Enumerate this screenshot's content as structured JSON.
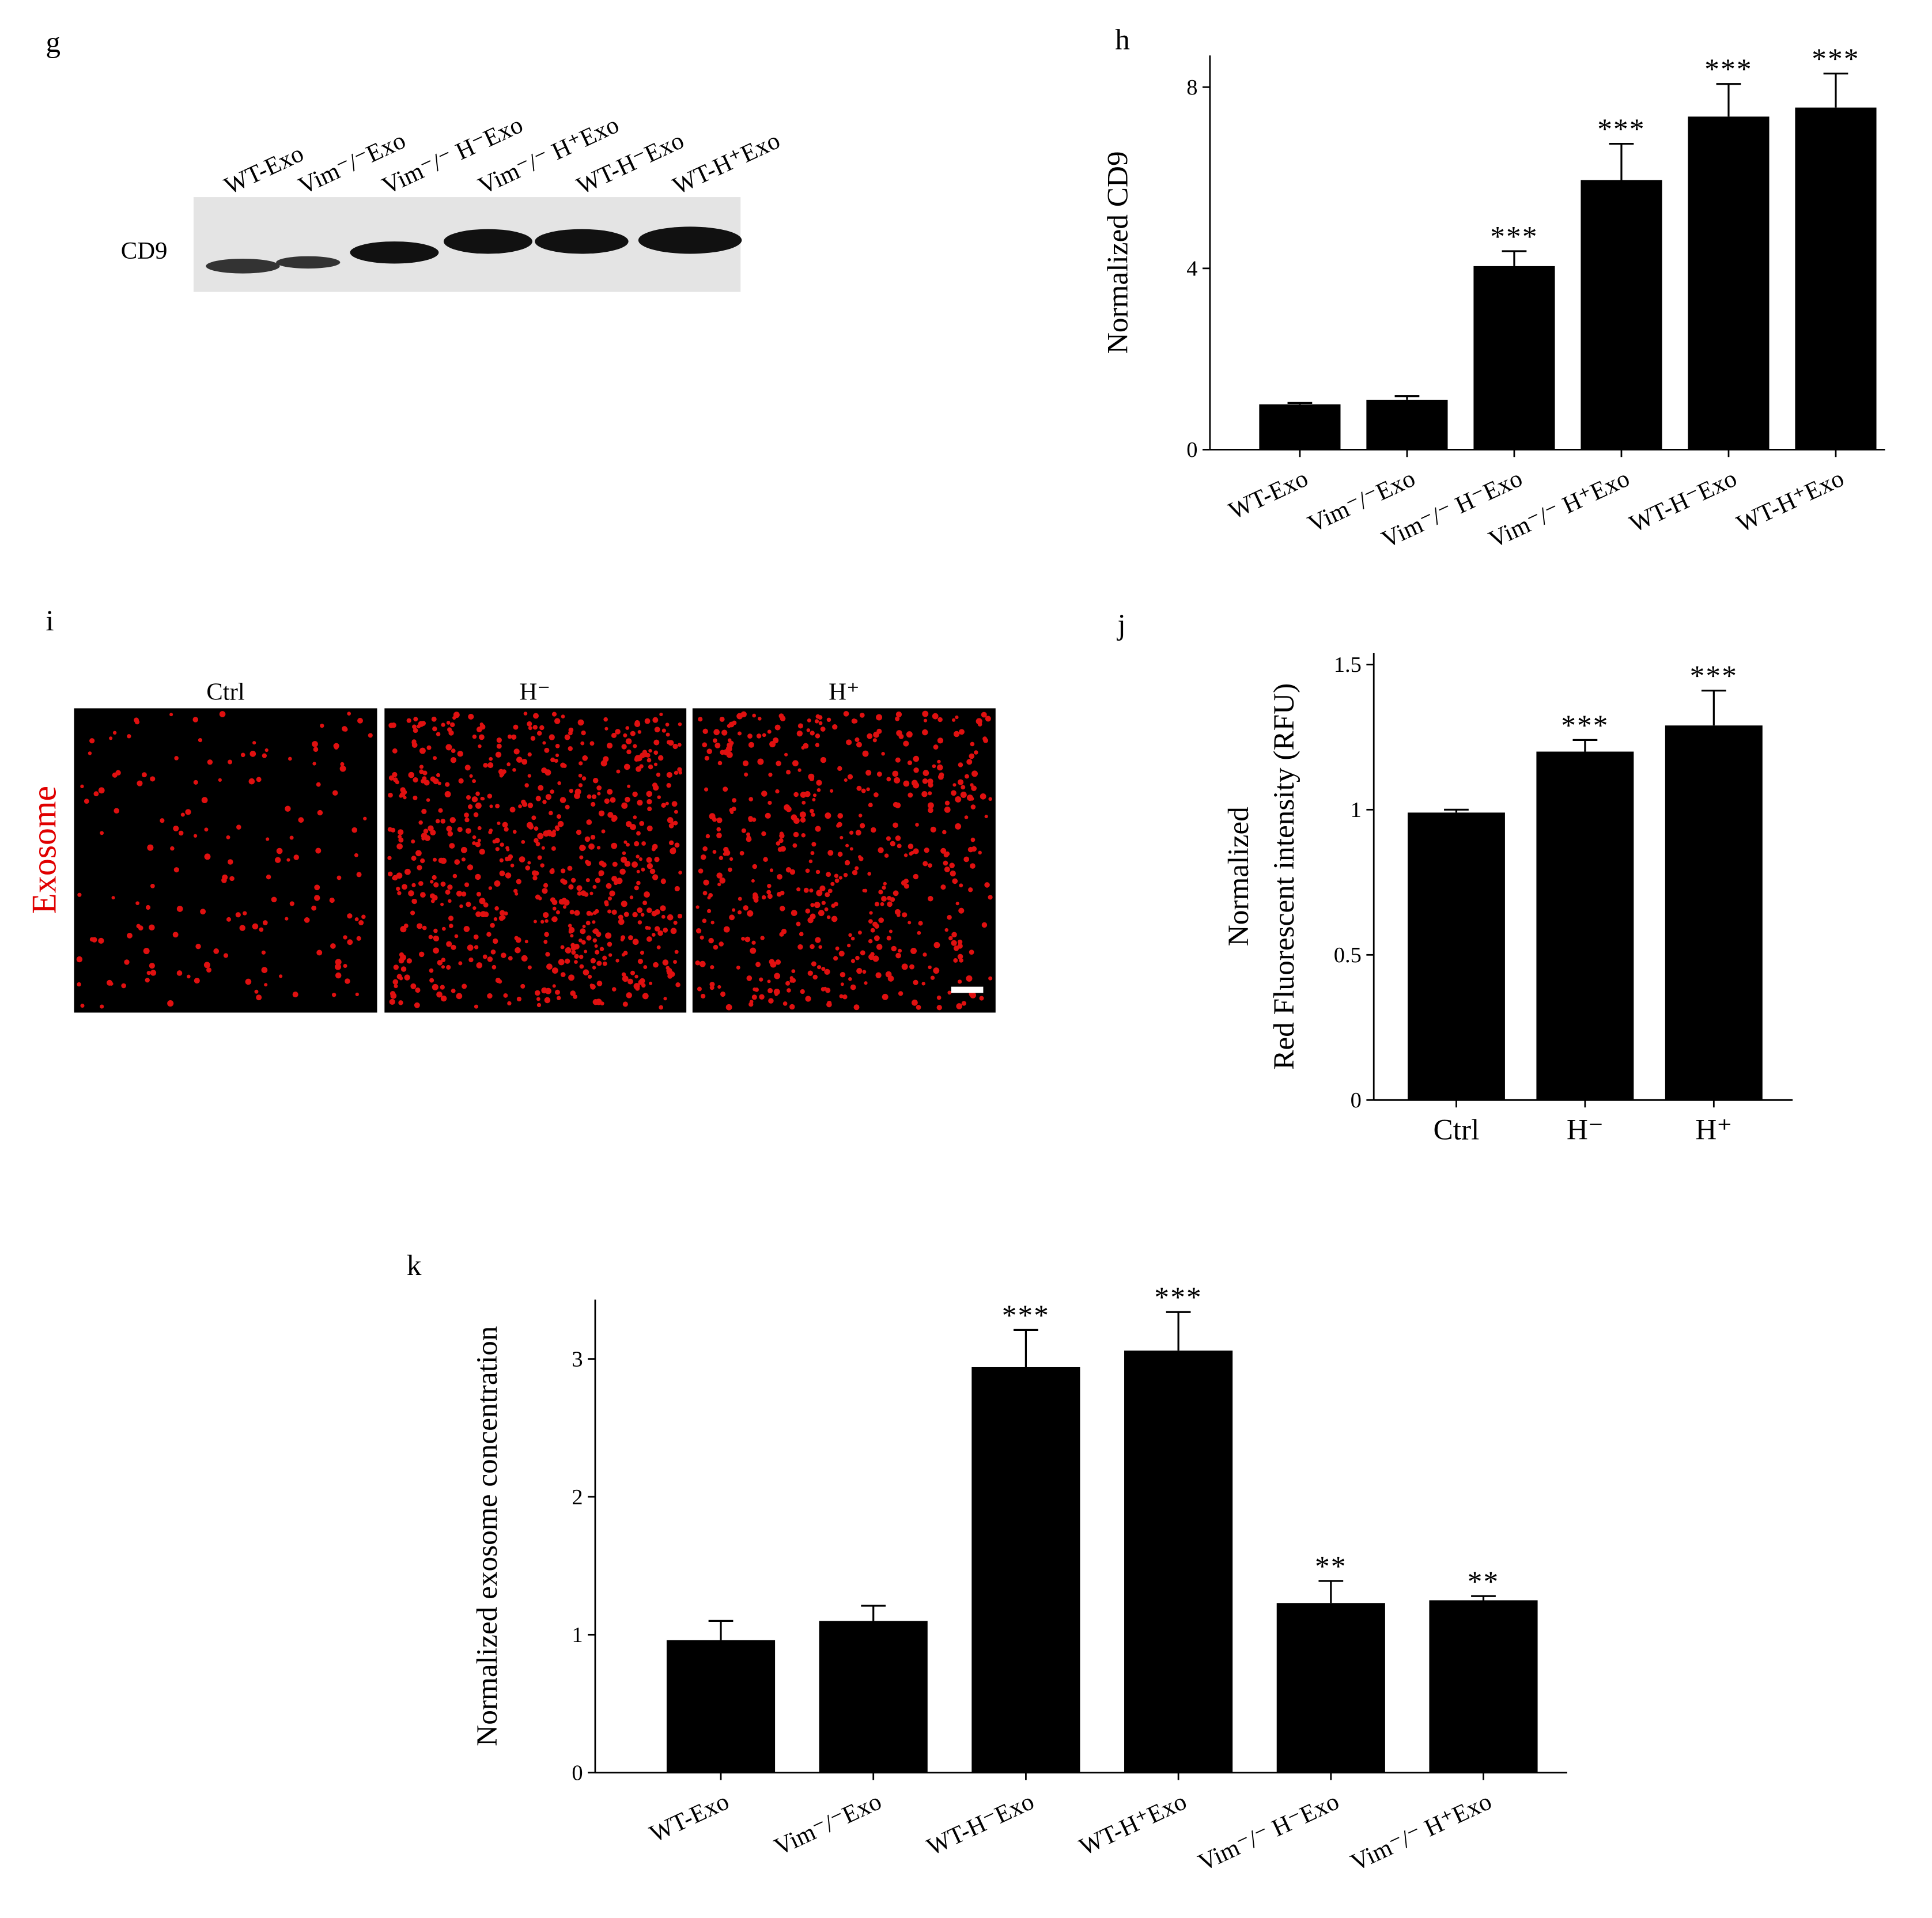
{
  "blot": {
    "letter": "g",
    "band_label": "CD9",
    "lanes": [
      "WT-Exo",
      "Vim⁻/⁻Exo",
      "Vim⁻/⁻ H⁻Exo",
      "Vim⁻/⁻ H⁺Exo",
      "WT-H⁻Exo",
      "WT-H⁺Exo"
    ]
  },
  "micrograph": {
    "letter": "i",
    "row_label": "Exosome",
    "columns": [
      "Ctrl",
      "H⁻",
      "H⁺"
    ]
  },
  "chart_data": [
    {
      "type": "bar",
      "label": "h",
      "ylabel": "Normalized CD9",
      "categories": [
        "WT-Exo",
        "Vim⁻/⁻Exo",
        "Vim⁻/⁻ H⁻Exo",
        "Vim⁻/⁻ H⁺Exo",
        "WT-H⁻Exo",
        "WT-H⁺Exo"
      ],
      "values": [
        1.0,
        1.1,
        4.05,
        5.95,
        7.35,
        7.55
      ],
      "errors": [
        0.03,
        0.08,
        0.33,
        0.8,
        0.72,
        0.75
      ],
      "significance": [
        null,
        null,
        "***",
        "***",
        "***",
        "***"
      ],
      "color": "#000000",
      "ylim": [
        0,
        8.7
      ],
      "yticks": [
        0,
        4,
        8
      ]
    },
    {
      "type": "bar",
      "label": "j",
      "ylabel": [
        "Normalized",
        "Red Fluorescent intensity (RFU)"
      ],
      "categories": [
        "Ctrl",
        "H⁻",
        "H⁺"
      ],
      "values": [
        0.99,
        1.2,
        1.29
      ],
      "errors": [
        0.01,
        0.04,
        0.12
      ],
      "significance": [
        null,
        "***",
        "***"
      ],
      "color": "#000000",
      "ylim": [
        0,
        1.54
      ],
      "yticks": [
        0,
        0.5,
        1,
        1.5
      ]
    },
    {
      "type": "bar",
      "label": "k",
      "ylabel": "Normalized exosome concentration",
      "categories": [
        "WT-Exo",
        "Vim⁻/⁻Exo",
        "WT-H⁻Exo",
        "WT-H⁺Exo",
        "Vim⁻/⁻ H⁻Exo",
        "Vim⁻/⁻ H⁺Exo"
      ],
      "values": [
        0.96,
        1.1,
        2.94,
        3.06,
        1.23,
        1.25
      ],
      "errors": [
        0.14,
        0.11,
        0.27,
        0.28,
        0.16,
        0.03
      ],
      "significance": [
        null,
        null,
        "***",
        "***",
        "**",
        "**"
      ],
      "color": "#000000",
      "ylim": [
        0,
        3.43
      ],
      "yticks": [
        0,
        1,
        2,
        3
      ]
    }
  ]
}
